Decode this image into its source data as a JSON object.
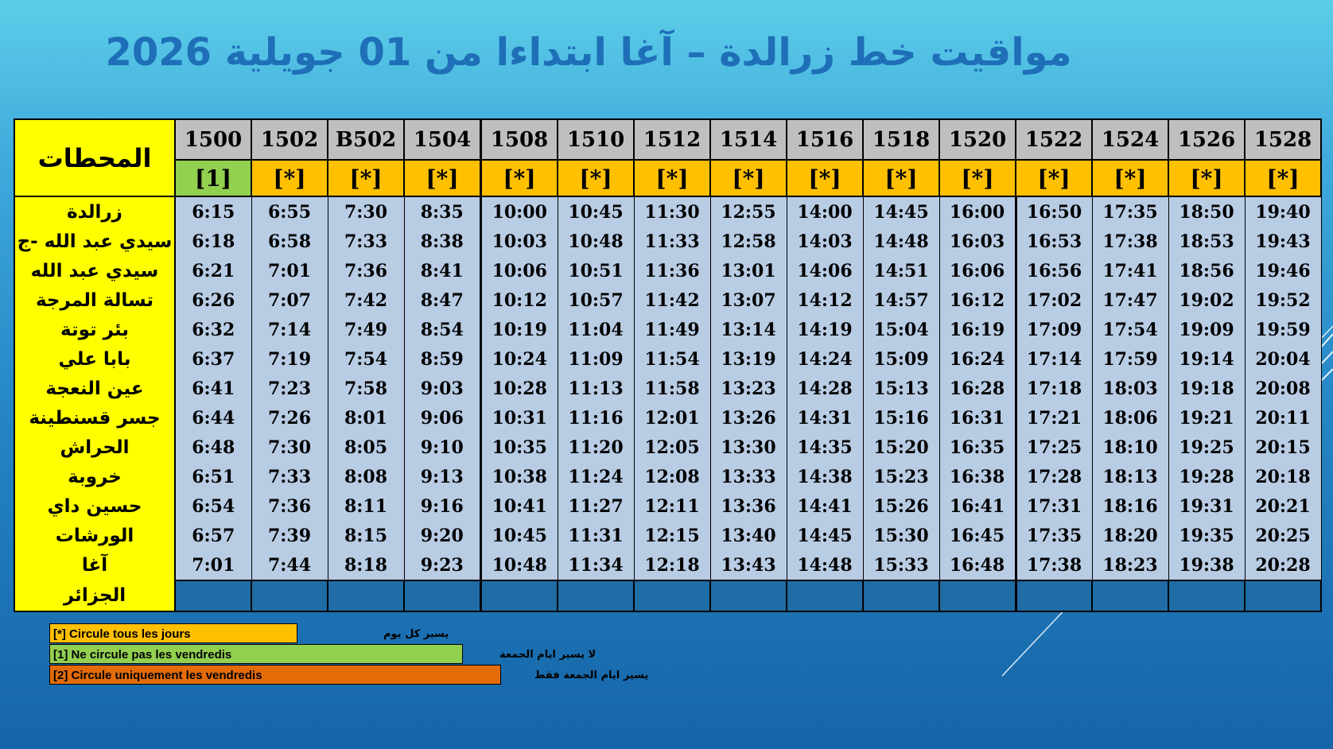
{
  "title": "مواقيت خط  زرالدة  – آغا  ابتداءا من 01 جويلية 2026",
  "stations_header": "المحطات",
  "trains": [
    "1500",
    "1502",
    "B502",
    "1504",
    "1508",
    "1510",
    "1512",
    "1514",
    "1516",
    "1518",
    "1520",
    "1522",
    "1524",
    "1526",
    "1528"
  ],
  "days": [
    "[1]",
    "[*]",
    "[*]",
    "[*]",
    "[*]",
    "[*]",
    "[*]",
    "[*]",
    "[*]",
    "[*]",
    "[*]",
    "[*]",
    "[*]",
    "[*]",
    "[*]"
  ],
  "day_colors": {
    "[1]": "#92d050",
    "[*]": "#ffc000"
  },
  "stations": [
    "زرالدة",
    "سيدي عبد الله -ج",
    "سيدي عبد الله",
    "تسالة المرجة",
    "بئر توتة",
    "بابا علي",
    "عين النعجة",
    "جسر قسنطينة",
    "الحراش",
    "خروبة",
    "حسين داي",
    "الورشات",
    "آغا",
    "الجزائر"
  ],
  "times": [
    [
      "6:15",
      "6:55",
      "7:30",
      "8:35",
      "10:00",
      "10:45",
      "11:30",
      "12:55",
      "14:00",
      "14:45",
      "16:00",
      "16:50",
      "17:35",
      "18:50",
      "19:40"
    ],
    [
      "6:18",
      "6:58",
      "7:33",
      "8:38",
      "10:03",
      "10:48",
      "11:33",
      "12:58",
      "14:03",
      "14:48",
      "16:03",
      "16:53",
      "17:38",
      "18:53",
      "19:43"
    ],
    [
      "6:21",
      "7:01",
      "7:36",
      "8:41",
      "10:06",
      "10:51",
      "11:36",
      "13:01",
      "14:06",
      "14:51",
      "16:06",
      "16:56",
      "17:41",
      "18:56",
      "19:46"
    ],
    [
      "6:26",
      "7:07",
      "7:42",
      "8:47",
      "10:12",
      "10:57",
      "11:42",
      "13:07",
      "14:12",
      "14:57",
      "16:12",
      "17:02",
      "17:47",
      "19:02",
      "19:52"
    ],
    [
      "6:32",
      "7:14",
      "7:49",
      "8:54",
      "10:19",
      "11:04",
      "11:49",
      "13:14",
      "14:19",
      "15:04",
      "16:19",
      "17:09",
      "17:54",
      "19:09",
      "19:59"
    ],
    [
      "6:37",
      "7:19",
      "7:54",
      "8:59",
      "10:24",
      "11:09",
      "11:54",
      "13:19",
      "14:24",
      "15:09",
      "16:24",
      "17:14",
      "17:59",
      "19:14",
      "20:04"
    ],
    [
      "6:41",
      "7:23",
      "7:58",
      "9:03",
      "10:28",
      "11:13",
      "11:58",
      "13:23",
      "14:28",
      "15:13",
      "16:28",
      "17:18",
      "18:03",
      "19:18",
      "20:08"
    ],
    [
      "6:44",
      "7:26",
      "8:01",
      "9:06",
      "10:31",
      "11:16",
      "12:01",
      "13:26",
      "14:31",
      "15:16",
      "16:31",
      "17:21",
      "18:06",
      "19:21",
      "20:11"
    ],
    [
      "6:48",
      "7:30",
      "8:05",
      "9:10",
      "10:35",
      "11:20",
      "12:05",
      "13:30",
      "14:35",
      "15:20",
      "16:35",
      "17:25",
      "18:10",
      "19:25",
      "20:15"
    ],
    [
      "6:51",
      "7:33",
      "8:08",
      "9:13",
      "10:38",
      "11:24",
      "12:08",
      "13:33",
      "14:38",
      "15:23",
      "16:38",
      "17:28",
      "18:13",
      "19:28",
      "20:18"
    ],
    [
      "6:54",
      "7:36",
      "8:11",
      "9:16",
      "10:41",
      "11:27",
      "12:11",
      "13:36",
      "14:41",
      "15:26",
      "16:41",
      "17:31",
      "18:16",
      "19:31",
      "20:21"
    ],
    [
      "6:57",
      "7:39",
      "8:15",
      "9:20",
      "10:45",
      "11:31",
      "12:15",
      "13:40",
      "14:45",
      "15:30",
      "16:45",
      "17:35",
      "18:20",
      "19:35",
      "20:25"
    ],
    [
      "7:01",
      "7:44",
      "8:18",
      "9:23",
      "10:48",
      "11:34",
      "12:18",
      "13:43",
      "14:48",
      "15:33",
      "16:48",
      "17:38",
      "18:23",
      "19:38",
      "20:28"
    ],
    [
      "",
      "",
      "",
      "",
      "",
      "",
      "",
      "",
      "",
      "",
      "",
      "",
      "",
      "",
      ""
    ]
  ],
  "legend": [
    {
      "label": "[*]  Circule tous les jours",
      "arabic": "يسير كل يوم",
      "color": "#ffc000"
    },
    {
      "label": "[1]  Ne circule pas les vendredis",
      "arabic": "لا يسير ايام الجمعة",
      "color": "#92d050"
    },
    {
      "label": "[2] Circule uniquement  les vendredis",
      "arabic": "يسير ايام الجمعة  فقط",
      "color": "#e36c09"
    }
  ]
}
